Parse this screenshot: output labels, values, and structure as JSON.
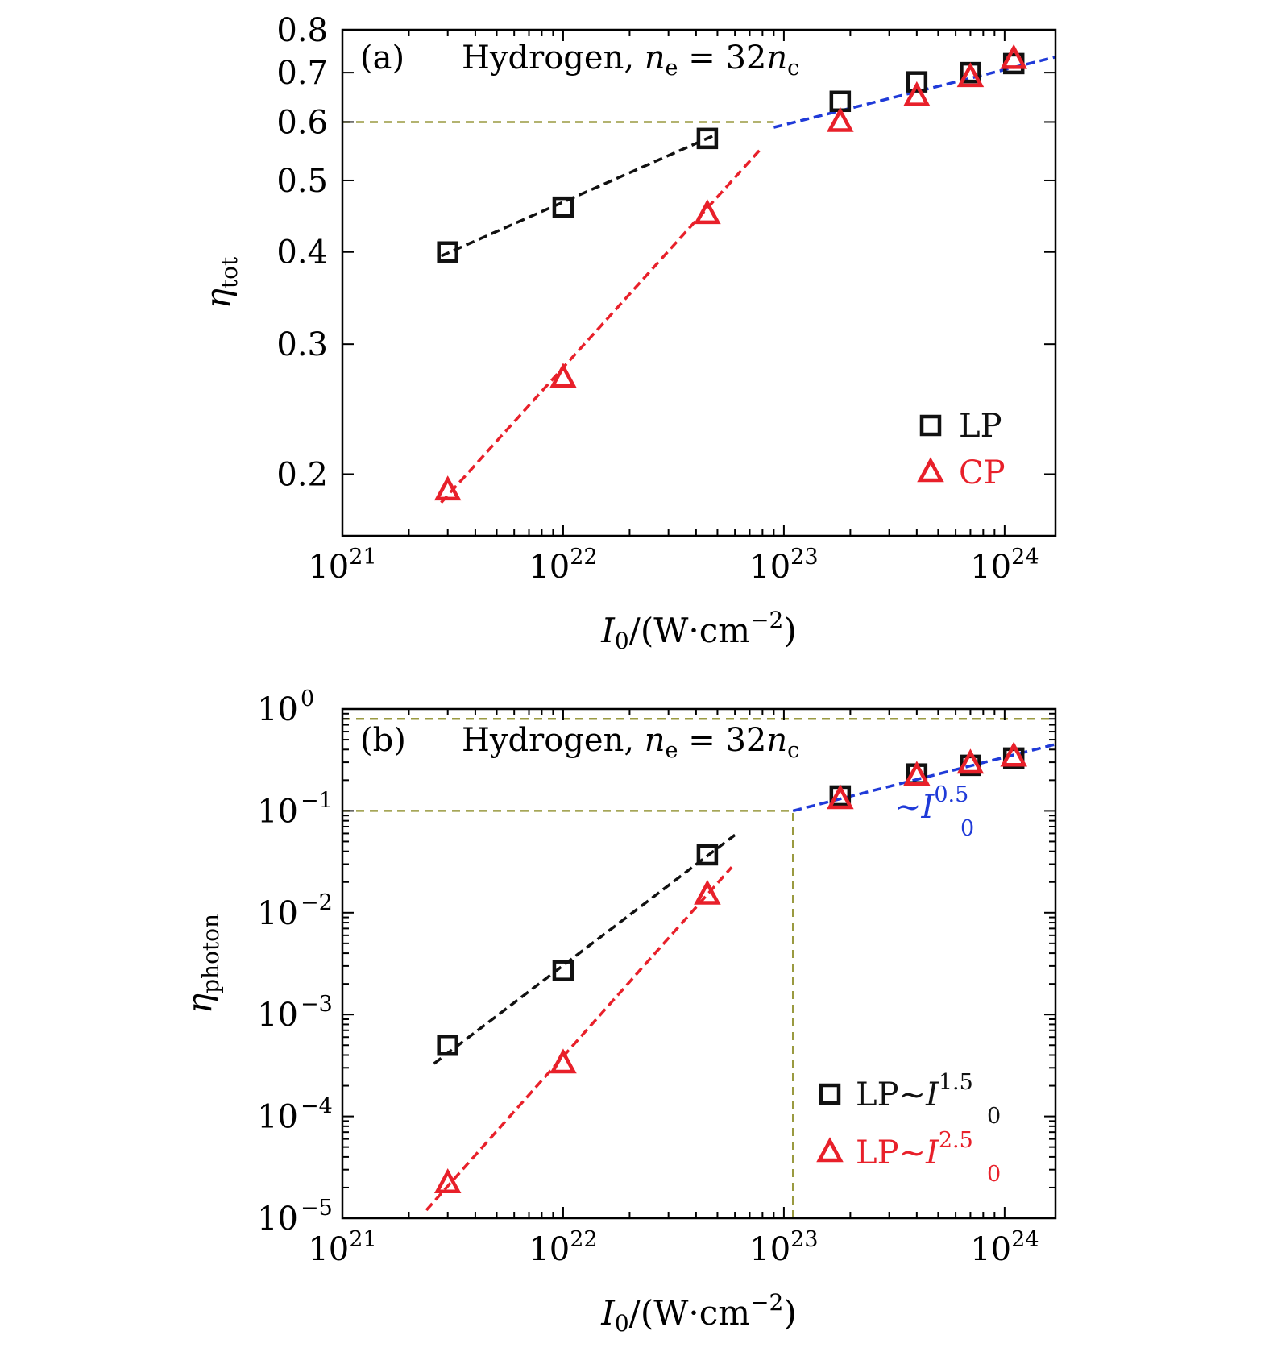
{
  "chart_data": [
    {
      "type": "scatter",
      "panel_label": "(a)",
      "annotation": {
        "prefix": "Hydrogen, ",
        "var": "n",
        "sub1": "e",
        "eq": " = 32",
        "var2": "n",
        "sub2": "c"
      },
      "ylabel": {
        "base": "η",
        "sub": "tot"
      },
      "xlabel": {
        "base": "I",
        "sub": "0",
        "rest": "/(W·cm",
        "exp": "−2",
        "close": ")"
      },
      "x_scale": "log",
      "y_scale": "log",
      "xlim": [
        1e+21,
        1.7e+24
      ],
      "ylim": [
        0.165,
        0.8
      ],
      "x_ticks": [
        {
          "v": 1e+21,
          "base": "10",
          "exp": "21"
        },
        {
          "v": 1e+22,
          "base": "10",
          "exp": "22"
        },
        {
          "v": 1e+23,
          "base": "10",
          "exp": "23"
        },
        {
          "v": 1e+24,
          "base": "10",
          "exp": "24"
        }
      ],
      "y_ticks": [
        {
          "v": 0.2,
          "label": "0.2"
        },
        {
          "v": 0.3,
          "label": "0.3"
        },
        {
          "v": 0.4,
          "label": "0.4"
        },
        {
          "v": 0.5,
          "label": "0.5"
        },
        {
          "v": 0.6,
          "label": "0.6"
        },
        {
          "v": 0.7,
          "label": "0.7"
        },
        {
          "v": 0.8,
          "label": "0.8"
        }
      ],
      "series": [
        {
          "name": "LP",
          "marker": "square",
          "color": "#111111",
          "x": [
            3e+21,
            1e+22,
            4.5e+22,
            1.8e+23,
            4e+23,
            7e+23,
            1.1e+24
          ],
          "y": [
            0.4,
            0.46,
            0.57,
            0.64,
            0.68,
            0.7,
            0.72
          ]
        },
        {
          "name": "CP",
          "marker": "triangle",
          "color": "#e8202a",
          "x": [
            3e+21,
            1e+22,
            4.5e+22,
            1.8e+23,
            4e+23,
            7e+23,
            1.1e+24
          ],
          "y": [
            0.19,
            0.27,
            0.45,
            0.6,
            0.65,
            0.69,
            0.73
          ]
        }
      ],
      "fit_lines": [
        {
          "color": "#111111",
          "x": [
            2.8e+21,
            4.8e+22
          ],
          "y": [
            0.395,
            0.575
          ]
        },
        {
          "color": "#e8202a",
          "x": [
            2.8e+21,
            8e+22
          ],
          "y": [
            0.183,
            0.555
          ]
        },
        {
          "color": "#1f3ad8",
          "x": [
            9e+22,
            1.7e+24
          ],
          "y": [
            0.59,
            0.735
          ]
        }
      ],
      "ref_lines": [
        {
          "color": "#9a9a40",
          "x": [
            1e+21,
            9e+22
          ],
          "y": [
            0.6,
            0.6
          ]
        }
      ],
      "legend": {
        "position": "bottom-right",
        "items": [
          {
            "label": "LP",
            "marker": "square",
            "color": "#111111"
          },
          {
            "label": "CP",
            "marker": "triangle",
            "color": "#e8202a"
          }
        ]
      },
      "grid": false
    },
    {
      "type": "scatter",
      "panel_label": "(b)",
      "annotation": {
        "prefix": "Hydrogen, ",
        "var": "n",
        "sub1": "e",
        "eq": " = 32",
        "var2": "n",
        "sub2": "c"
      },
      "ylabel": {
        "base": "η",
        "sub": "photon"
      },
      "xlabel": {
        "base": "I",
        "sub": "0",
        "rest": "/(W·cm",
        "exp": "−2",
        "close": ")"
      },
      "x_scale": "log",
      "y_scale": "log",
      "xlim": [
        1e+21,
        1.7e+24
      ],
      "ylim": [
        1e-05,
        1
      ],
      "x_ticks": [
        {
          "v": 1e+21,
          "base": "10",
          "exp": "21"
        },
        {
          "v": 1e+22,
          "base": "10",
          "exp": "22"
        },
        {
          "v": 1e+23,
          "base": "10",
          "exp": "23"
        },
        {
          "v": 1e+24,
          "base": "10",
          "exp": "24"
        }
      ],
      "y_ticks": [
        {
          "v": 1e-05,
          "base": "10",
          "exp": "−5"
        },
        {
          "v": 0.0001,
          "base": "10",
          "exp": "−4"
        },
        {
          "v": 0.001,
          "base": "10",
          "exp": "−3"
        },
        {
          "v": 0.01,
          "base": "10",
          "exp": "−2"
        },
        {
          "v": 0.1,
          "base": "10",
          "exp": "−1"
        },
        {
          "v": 1,
          "base": "10",
          "exp": "0"
        }
      ],
      "series": [
        {
          "name": "LP∼I0^1.5",
          "marker": "square",
          "color": "#111111",
          "x": [
            3e+21,
            1e+22,
            4.5e+22,
            1.8e+23,
            4e+23,
            7e+23,
            1.1e+24
          ],
          "y": [
            0.0005,
            0.0027,
            0.037,
            0.14,
            0.23,
            0.28,
            0.33
          ]
        },
        {
          "name": "LP∼I0^2.5",
          "marker": "triangle",
          "color": "#e8202a",
          "x": [
            3e+21,
            1e+22,
            4.5e+22,
            1.8e+23,
            4e+23,
            7e+23,
            1.1e+24
          ],
          "y": [
            2.2e-05,
            0.00033,
            0.015,
            0.13,
            0.22,
            0.29,
            0.34
          ]
        }
      ],
      "fit_lines": [
        {
          "color": "#111111",
          "x": [
            2.6e+21,
            6e+22
          ],
          "y": [
            0.00033,
            0.058
          ]
        },
        {
          "color": "#e8202a",
          "x": [
            2.4e+21,
            5.8e+22
          ],
          "y": [
            1.2e-05,
            0.028
          ]
        },
        {
          "color": "#1f3ad8",
          "x": [
            1.1e+23,
            1.7e+24
          ],
          "y": [
            0.1,
            0.45
          ]
        }
      ],
      "ref_lines": [
        {
          "color": "#9a9a40",
          "x": [
            1e+21,
            1.7e+24
          ],
          "y": [
            0.8,
            0.8
          ]
        },
        {
          "color": "#9a9a40",
          "x": [
            1e+21,
            1.1e+23
          ],
          "y": [
            0.1,
            0.1
          ]
        },
        {
          "color": "#9a9a40",
          "x": [
            1.1e+23,
            1.1e+23
          ],
          "y": [
            1e-05,
            0.1
          ]
        }
      ],
      "fit_annotation": {
        "prefix": "∼",
        "var": "I",
        "sub": "0",
        "sup": "0.5",
        "color": "#1f3ad8"
      },
      "legend": {
        "position": "bottom-right",
        "items": [
          {
            "label": "LP∼",
            "var": "I",
            "sub": "0",
            "sup": "1.5",
            "marker": "square",
            "color": "#111111"
          },
          {
            "label": "LP∼",
            "var": "I",
            "sub": "0",
            "sup": "2.5",
            "marker": "triangle",
            "color": "#e8202a"
          }
        ]
      },
      "grid": false
    }
  ]
}
